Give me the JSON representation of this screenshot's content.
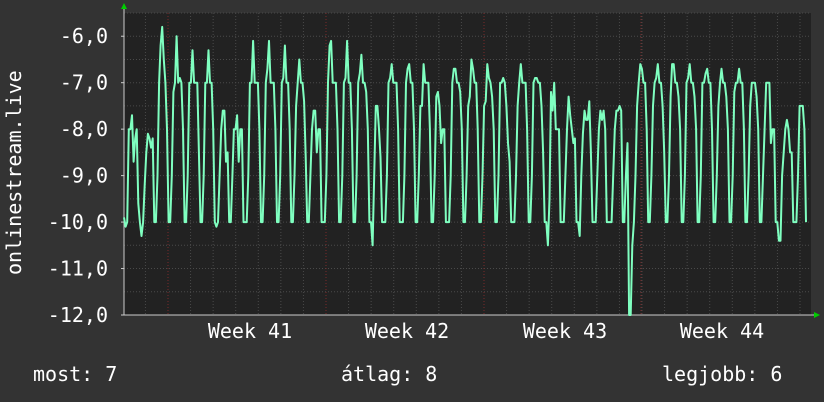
{
  "chart_data": {
    "type": "line",
    "ylabel": "onlinestream.live",
    "ylim": [
      -12,
      -5.5
    ],
    "yticks": [
      -6,
      -7,
      -8,
      -9,
      -10,
      -11,
      -12
    ],
    "ytick_labels": [
      "-6,0",
      "-7,0",
      "-8,0",
      "-9,0",
      "-10,0",
      "-11,0",
      "-12,0"
    ],
    "x_tick_labels": [
      "Week 41",
      "Week 42",
      "Week 43",
      "Week 44"
    ],
    "grid": true,
    "colors": {
      "background": "#333333",
      "plot_background": "#222222",
      "grid": "#4a4a4a",
      "week_line": "#7a2a2a",
      "axis_arrow": "#00cc00",
      "series": "#7fffc0"
    },
    "series": [
      {
        "values": [
          -9.9,
          -10.1,
          -10.0,
          -8.0,
          -8.0,
          -7.7,
          -8.7,
          -8.2,
          -8.0,
          -9.6,
          -10.0,
          -10.3,
          -10.0,
          -9.2,
          -8.5,
          -8.1,
          -8.2,
          -8.4,
          -8.2,
          -10.0,
          -10.0,
          -9.0,
          -7.0,
          -6.2,
          -5.8,
          -6.5,
          -7.0,
          -8.0,
          -10.0,
          -10.0,
          -9.0,
          -7.2,
          -7.0,
          -6.0,
          -7.0,
          -6.9,
          -7.0,
          -8.0,
          -10.0,
          -10.0,
          -9.0,
          -7.0,
          -7.0,
          -6.3,
          -7.0,
          -7.0,
          -7.0,
          -8.5,
          -10.0,
          -10.0,
          -9.0,
          -7.0,
          -7.0,
          -6.3,
          -7.0,
          -7.0,
          -8.0,
          -10.0,
          -10.1,
          -10.0,
          -9.0,
          -8.0,
          -7.6,
          -7.6,
          -8.7,
          -8.5,
          -10.0,
          -10.0,
          -9.0,
          -8.0,
          -8.0,
          -7.7,
          -8.7,
          -8.0,
          -8.0,
          -10.0,
          -10.0,
          -10.0,
          -9.0,
          -7.0,
          -7.0,
          -6.1,
          -7.0,
          -7.0,
          -7.0,
          -8.0,
          -10.0,
          -10.0,
          -9.0,
          -7.0,
          -6.7,
          -6.1,
          -7.0,
          -7.0,
          -7.0,
          -8.0,
          -10.0,
          -10.0,
          -9.0,
          -7.0,
          -6.9,
          -6.2,
          -7.0,
          -7.0,
          -8.0,
          -10.0,
          -10.0,
          -9.0,
          -7.5,
          -7.0,
          -6.5,
          -7.0,
          -7.0,
          -7.4,
          -8.6,
          -10.0,
          -10.0,
          -9.0,
          -8.0,
          -7.6,
          -7.6,
          -8.5,
          -8.0,
          -8.0,
          -10.0,
          -10.0,
          -10.0,
          -9.0,
          -7.0,
          -6.2,
          -6.1,
          -7.0,
          -7.0,
          -7.0,
          -8.0,
          -10.0,
          -10.0,
          -9.0,
          -7.0,
          -6.9,
          -6.1,
          -7.0,
          -7.0,
          -8.0,
          -10.0,
          -10.0,
          -9.0,
          -7.0,
          -6.8,
          -6.4,
          -7.0,
          -7.0,
          -7.2,
          -8.0,
          -10.0,
          -10.0,
          -10.5,
          -9.0,
          -7.5,
          -7.5,
          -8.0,
          -8.6,
          -10.0,
          -10.0,
          -10.0,
          -9.0,
          -7.0,
          -6.9,
          -6.6,
          -7.0,
          -7.0,
          -7.0,
          -8.0,
          -10.0,
          -10.0,
          -10.0,
          -9.0,
          -7.0,
          -6.7,
          -6.6,
          -7.0,
          -7.0,
          -8.0,
          -10.0,
          -10.0,
          -9.0,
          -7.5,
          -7.5,
          -6.6,
          -7.0,
          -7.0,
          -7.0,
          -8.0,
          -10.0,
          -10.0,
          -9.0,
          -7.3,
          -7.2,
          -7.5,
          -8.3,
          -8.0,
          -8.0,
          -10.0,
          -10.0,
          -10.0,
          -9.0,
          -7.0,
          -6.7,
          -6.7,
          -7.0,
          -7.0,
          -7.2,
          -8.0,
          -10.0,
          -10.0,
          -9.0,
          -7.5,
          -7.3,
          -6.5,
          -6.7,
          -7.0,
          -7.0,
          -8.0,
          -10.0,
          -10.0,
          -9.0,
          -7.5,
          -7.4,
          -6.6,
          -6.9,
          -7.0,
          -7.3,
          -8.0,
          -10.0,
          -10.0,
          -9.0,
          -7.0,
          -7.0,
          -6.9,
          -7.0,
          -7.5,
          -8.3,
          -8.7,
          -10.0,
          -10.0,
          -10.0,
          -9.0,
          -7.5,
          -7.0,
          -6.6,
          -7.0,
          -7.0,
          -7.0,
          -8.0,
          -10.0,
          -10.0,
          -9.0,
          -7.0,
          -6.9,
          -6.9,
          -7.0,
          -7.0,
          -7.5,
          -8.5,
          -10.0,
          -10.0,
          -10.5,
          -9.5,
          -7.2,
          -7.6,
          -7.0,
          -8.0,
          -8.0,
          -8.0,
          -10.0,
          -10.0,
          -10.0,
          -9.0,
          -8.0,
          -7.3,
          -7.7,
          -8.0,
          -8.3,
          -8.2,
          -10.0,
          -10.0,
          -10.3,
          -9.0,
          -8.1,
          -7.6,
          -7.8,
          -7.8,
          -7.4,
          -8.5,
          -10.0,
          -10.0,
          -10.0,
          -9.0,
          -8.0,
          -7.6,
          -7.8,
          -7.6,
          -8.0,
          -10.0,
          -10.0,
          -10.0,
          -10.0,
          -9.0,
          -8.0,
          -7.6,
          -7.6,
          -7.5,
          -7.6,
          -10.0,
          -10.0,
          -9.0,
          -8.3,
          -12.0,
          -12.0,
          -10.5,
          -10.0,
          -9.0,
          -7.5,
          -7.0,
          -6.6,
          -6.7,
          -7.0,
          -7.0,
          -8.0,
          -10.0,
          -10.0,
          -9.0,
          -7.5,
          -7.0,
          -6.9,
          -6.6,
          -7.0,
          -7.0,
          -7.5,
          -8.5,
          -10.0,
          -10.0,
          -9.0,
          -7.3,
          -6.6,
          -6.6,
          -7.0,
          -7.0,
          -7.3,
          -8.0,
          -10.0,
          -10.0,
          -9.0,
          -7.0,
          -6.9,
          -6.6,
          -7.0,
          -7.0,
          -7.3,
          -8.0,
          -10.0,
          -10.0,
          -9.0,
          -7.0,
          -7.0,
          -6.8,
          -6.7,
          -7.0,
          -7.0,
          -8.0,
          -10.0,
          -10.0,
          -9.0,
          -7.5,
          -7.0,
          -6.7,
          -7.0,
          -7.0,
          -7.3,
          -8.0,
          -10.0,
          -10.0,
          -9.0,
          -7.2,
          -7.0,
          -7.0,
          -6.7,
          -7.0,
          -7.0,
          -8.0,
          -10.0,
          -10.0,
          -9.0,
          -7.5,
          -7.0,
          -7.0,
          -7.0,
          -7.3,
          -8.0,
          -10.0,
          -10.0,
          -9.0,
          -8.0,
          -7.0,
          -7.0,
          -7.0,
          -8.3,
          -8.0,
          -8.0,
          -10.0,
          -10.0,
          -10.4,
          -10.4,
          -9.0,
          -8.5,
          -8.0,
          -7.8,
          -8.0,
          -8.5,
          -8.5,
          -10.0,
          -10.0,
          -10.0,
          -9.0,
          -7.5,
          -7.5,
          -7.5,
          -8.0,
          -10.0
        ]
      }
    ]
  },
  "footer": {
    "current": "most: 7",
    "average": "átlag: 8",
    "best": "legjobb: 6"
  }
}
